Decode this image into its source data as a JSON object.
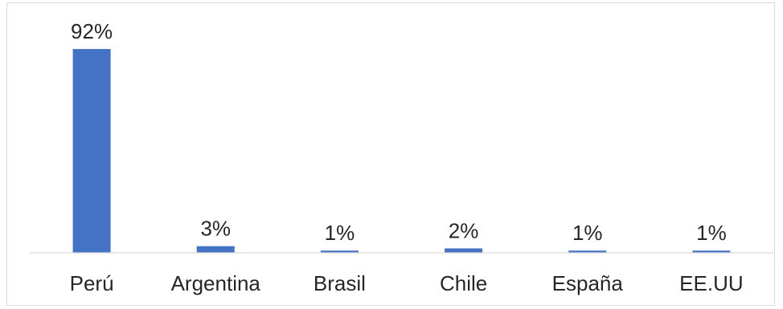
{
  "chart_data": {
    "type": "bar",
    "categories": [
      "Perú",
      "Argentina",
      "Brasil",
      "Chile",
      "España",
      "EE.UU"
    ],
    "values": [
      92,
      3,
      1,
      2,
      1,
      1
    ],
    "data_labels": [
      "92%",
      "3%",
      "1%",
      "2%",
      "1%",
      "1%"
    ],
    "unit": "%",
    "ylim": [
      0,
      100
    ],
    "title": "",
    "xlabel": "",
    "ylabel": "",
    "grid": false,
    "legend": "none",
    "bar_color": "#4472c4",
    "axis_color": "#d9d9d9",
    "text_color": "#262626"
  }
}
